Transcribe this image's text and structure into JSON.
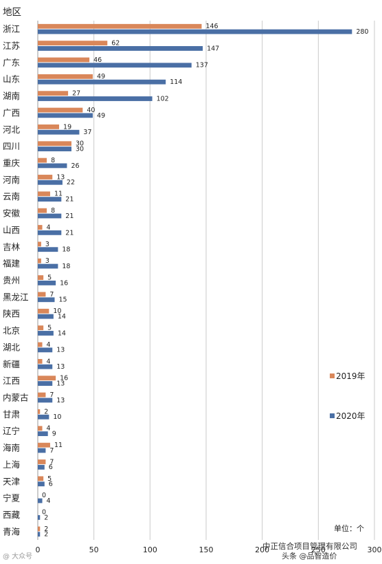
{
  "chart_data": {
    "type": "bar",
    "orientation": "horizontal",
    "axis_title": "地区",
    "unit_label": "单位：个",
    "categories": [
      "浙江",
      "江苏",
      "广东",
      "山东",
      "湖南",
      "广西",
      "河北",
      "四川",
      "重庆",
      "河南",
      "云南",
      "安徽",
      "山西",
      "吉林",
      "福建",
      "贵州",
      "黑龙江",
      "陕西",
      "北京",
      "湖北",
      "新疆",
      "江西",
      "内蒙古",
      "甘肃",
      "辽宁",
      "海南",
      "上海",
      "天津",
      "宁夏",
      "西藏",
      "青海"
    ],
    "series": [
      {
        "name": "2019年",
        "color": "#D9875A",
        "values": [
          146,
          62,
          46,
          49,
          27,
          40,
          19,
          30,
          8,
          13,
          11,
          8,
          4,
          3,
          3,
          5,
          7,
          10,
          5,
          4,
          4,
          16,
          7,
          2,
          4,
          11,
          7,
          5,
          0,
          0,
          2
        ]
      },
      {
        "name": "2020年",
        "color": "#4A6FA5",
        "values": [
          280,
          147,
          137,
          114,
          102,
          49,
          37,
          30,
          26,
          22,
          21,
          21,
          21,
          18,
          18,
          16,
          15,
          14,
          14,
          13,
          13,
          13,
          13,
          10,
          9,
          7,
          6,
          6,
          4,
          2,
          2
        ]
      }
    ],
    "x_ticks": [
      0,
      50,
      100,
      150,
      200,
      250,
      300
    ],
    "xlim": [
      0,
      300
    ],
    "grid": "vertical",
    "legend_position": "right"
  },
  "watermarks": {
    "bottom_left": "@ 大众号",
    "bottom_right": "中正信合项目管理有限公司",
    "bottom_right_2": "头条 @品智造价"
  }
}
